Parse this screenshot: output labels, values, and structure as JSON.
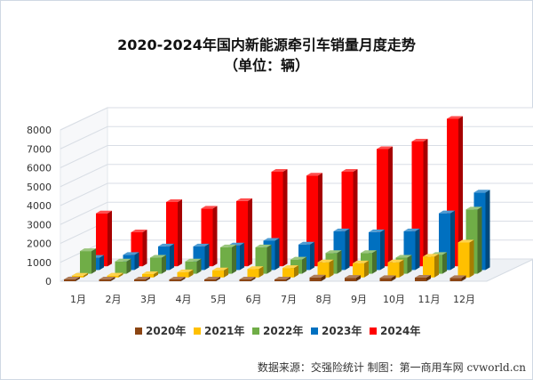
{
  "title_line1": "2020-2024年国内新能源牵引车销量月度走势",
  "title_line2": "（单位：辆）",
  "source": "数据来源：交强险统计 制图：第一商用车网 cvworld.cn",
  "chart_data": {
    "type": "bar",
    "style": "3d-clustered-bar",
    "categories": [
      "1月",
      "2月",
      "3月",
      "4月",
      "5月",
      "6月",
      "7月",
      "8月",
      "9月",
      "10月",
      "11月",
      "12月"
    ],
    "ylim": [
      0,
      8000
    ],
    "yticks": [
      0,
      1000,
      2000,
      3000,
      4000,
      5000,
      6000,
      7000,
      8000
    ],
    "grid": true,
    "legend_position": "bottom",
    "series": [
      {
        "name": "2020年",
        "color": "#8B4513",
        "values": [
          60,
          40,
          60,
          80,
          70,
          70,
          90,
          200,
          180,
          170,
          190,
          170
        ]
      },
      {
        "name": "2021年",
        "color": "#FFC000",
        "values": [
          50,
          100,
          180,
          280,
          380,
          450,
          500,
          800,
          750,
          800,
          1100,
          1850
        ]
      },
      {
        "name": "2022年",
        "color": "#70AD47",
        "values": [
          1200,
          650,
          850,
          650,
          1400,
          1400,
          750,
          1100,
          1100,
          850,
          1000,
          3400
        ]
      },
      {
        "name": "2023年",
        "color": "#0070C0",
        "values": [
          650,
          800,
          1250,
          1250,
          1300,
          1550,
          1350,
          2050,
          2000,
          2050,
          3000,
          4100
        ]
      },
      {
        "name": "2024年",
        "color": "#FF0000",
        "values": [
          2800,
          1800,
          3400,
          3050,
          3450,
          5000,
          4800,
          5000,
          6200,
          6600,
          7800,
          0
        ]
      }
    ]
  }
}
